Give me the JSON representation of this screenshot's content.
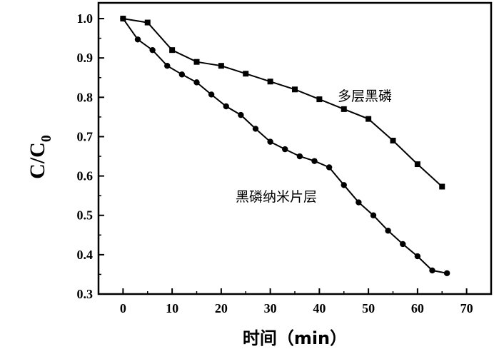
{
  "chart_data": {
    "type": "line",
    "title": "",
    "xlabel": "时间（min）",
    "ylabel": {
      "main": "C/C",
      "subscript": "0"
    },
    "xlim": [
      -5,
      75
    ],
    "ylim": [
      0.3,
      1.04
    ],
    "x_ticks": [
      "0",
      "10",
      "20",
      "30",
      "40",
      "50",
      "60",
      "70"
    ],
    "y_ticks": [
      "0.3",
      "0.4",
      "0.5",
      "0.6",
      "0.7",
      "0.8",
      "0.9",
      "1.0"
    ],
    "grid": false,
    "legend": "none",
    "series": [
      {
        "name": "多层黑磷",
        "marker": "square",
        "color": "#000000",
        "x": [
          0,
          5,
          10,
          15,
          20,
          25,
          30,
          35,
          40,
          45,
          50,
          55,
          60,
          65
        ],
        "y": [
          1.0,
          0.99,
          0.92,
          0.89,
          0.88,
          0.86,
          0.84,
          0.82,
          0.795,
          0.77,
          0.745,
          0.69,
          0.63,
          0.573
        ]
      },
      {
        "name": "黑磷纳米片层",
        "marker": "circle",
        "color": "#000000",
        "x": [
          0,
          3,
          6,
          9,
          12,
          15,
          18,
          21,
          24,
          27,
          30,
          33,
          36,
          39,
          42,
          45,
          48,
          51,
          54,
          57,
          60,
          63,
          66
        ],
        "y": [
          1.0,
          0.947,
          0.92,
          0.88,
          0.858,
          0.838,
          0.807,
          0.777,
          0.755,
          0.72,
          0.687,
          0.668,
          0.65,
          0.638,
          0.622,
          0.577,
          0.533,
          0.5,
          0.461,
          0.427,
          0.396,
          0.36,
          0.353
        ]
      }
    ]
  }
}
